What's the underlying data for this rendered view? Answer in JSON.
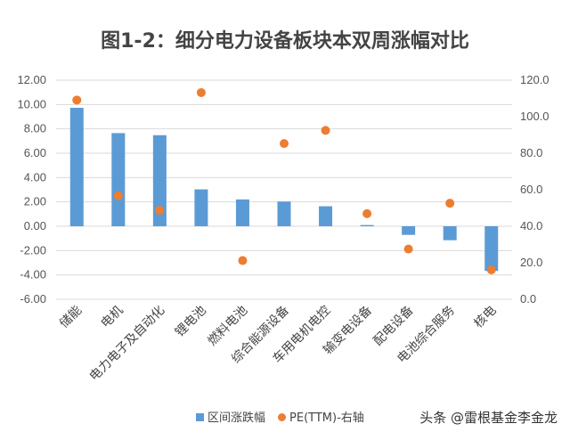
{
  "chart_data": {
    "type": "bar",
    "title": "图1-2：细分电力设备板块本双周涨幅对比",
    "categories": [
      "储能",
      "电机",
      "电力电子及自动化",
      "锂电池",
      "燃料电池",
      "综合能源设备",
      "车用电机电控",
      "输变电设备",
      "配电设备",
      "电池综合服务",
      "核电"
    ],
    "series": [
      {
        "name": "区间涨跌幅",
        "type": "bar",
        "axis": "left",
        "color": "#5b9bd5",
        "values": [
          9.73,
          7.65,
          7.48,
          3.03,
          2.2,
          2.03,
          1.64,
          0.1,
          -0.71,
          -1.15,
          -3.67
        ]
      },
      {
        "name": "PE(TTM)-右轴",
        "type": "scatter",
        "axis": "right",
        "color": "#ed7d31",
        "values": [
          109.1,
          56.7,
          48.7,
          113.2,
          21.2,
          85.3,
          92.5,
          46.9,
          27.5,
          52.6,
          16.1
        ]
      }
    ],
    "ylim": [
      -6,
      12
    ],
    "yticks": [
      "12.00",
      "10.00",
      "8.00",
      "6.00",
      "4.00",
      "2.00",
      "0.00",
      "-2.00",
      "-4.00",
      "-6.00"
    ],
    "y2lim": [
      0,
      120
    ],
    "y2ticks": [
      "120.0",
      "100.0",
      "80.0",
      "60.0",
      "40.0",
      "20.0",
      "0.0"
    ],
    "grid": true,
    "legend": "bottom"
  },
  "watermark": "头条 @雷根基金李金龙"
}
